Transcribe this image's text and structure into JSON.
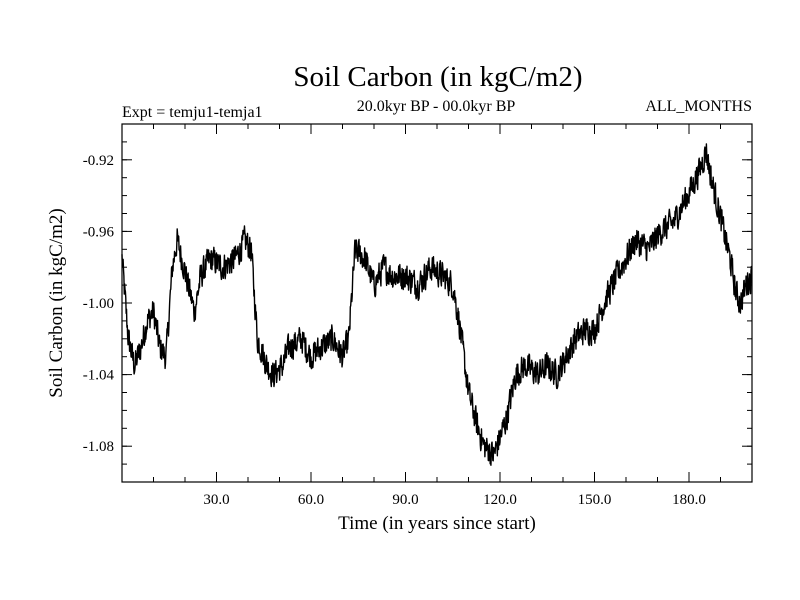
{
  "chart_data": {
    "type": "line",
    "title": "Soil Carbon (in kgC/m2)",
    "left_subtitle": "Expt = temju1-temja1",
    "center_subtitle": "20.0kyr BP - 00.0kyr BP",
    "right_subtitle": "ALL_MONTHS",
    "xlabel": "Time (in years since start)",
    "ylabel": "Soil Carbon (in kgC/m2)",
    "xlim": [
      0,
      200
    ],
    "ylim": [
      -1.1,
      -0.9
    ],
    "x_ticks": [
      30,
      60,
      90,
      120,
      150,
      180
    ],
    "x_tick_labels": [
      "30.0",
      "60.0",
      "90.0",
      "120.0",
      "150.0",
      "180.0"
    ],
    "y_ticks": [
      -0.92,
      -0.96,
      -1.0,
      -1.04,
      -1.08
    ],
    "y_tick_labels": [
      "-0.92",
      "-0.96",
      "-1.00",
      "-1.04",
      "-1.08"
    ],
    "noise_amplitude": 0.008,
    "series": [
      {
        "name": "Soil Carbon",
        "color": "#000000",
        "keypoints": [
          [
            0.0,
            -0.975
          ],
          [
            2.0,
            -1.02
          ],
          [
            4.0,
            -1.035
          ],
          [
            6.0,
            -1.025
          ],
          [
            8.0,
            -1.01
          ],
          [
            10.0,
            -1.005
          ],
          [
            12.0,
            -1.025
          ],
          [
            14.0,
            -1.03
          ],
          [
            16.0,
            -0.98
          ],
          [
            17.5,
            -0.965
          ],
          [
            19.0,
            -0.975
          ],
          [
            21.0,
            -0.99
          ],
          [
            23.0,
            -1.005
          ],
          [
            25.0,
            -0.985
          ],
          [
            28.0,
            -0.975
          ],
          [
            32.0,
            -0.98
          ],
          [
            36.0,
            -0.975
          ],
          [
            39.0,
            -0.965
          ],
          [
            41.0,
            -0.97
          ],
          [
            43.0,
            -1.02
          ],
          [
            46.0,
            -1.035
          ],
          [
            48.0,
            -1.04
          ],
          [
            51.0,
            -1.035
          ],
          [
            53.0,
            -1.025
          ],
          [
            57.0,
            -1.02
          ],
          [
            60.0,
            -1.03
          ],
          [
            63.0,
            -1.025
          ],
          [
            67.0,
            -1.02
          ],
          [
            70.0,
            -1.03
          ],
          [
            72.0,
            -1.02
          ],
          [
            74.0,
            -0.97
          ],
          [
            77.0,
            -0.975
          ],
          [
            80.0,
            -0.99
          ],
          [
            83.0,
            -0.98
          ],
          [
            86.0,
            -0.985
          ],
          [
            90.0,
            -0.985
          ],
          [
            94.0,
            -0.99
          ],
          [
            98.0,
            -0.98
          ],
          [
            102.0,
            -0.985
          ],
          [
            105.0,
            -0.99
          ],
          [
            107.0,
            -1.01
          ],
          [
            110.0,
            -1.05
          ],
          [
            113.0,
            -1.07
          ],
          [
            115.0,
            -1.08
          ],
          [
            118.0,
            -1.085
          ],
          [
            120.0,
            -1.075
          ],
          [
            122.0,
            -1.065
          ],
          [
            125.0,
            -1.04
          ],
          [
            128.0,
            -1.035
          ],
          [
            132.0,
            -1.04
          ],
          [
            135.0,
            -1.035
          ],
          [
            138.0,
            -1.04
          ],
          [
            141.0,
            -1.03
          ],
          [
            144.0,
            -1.02
          ],
          [
            147.0,
            -1.015
          ],
          [
            150.0,
            -1.015
          ],
          [
            153.0,
            -1.0
          ],
          [
            157.0,
            -0.985
          ],
          [
            160.0,
            -0.975
          ],
          [
            163.0,
            -0.965
          ],
          [
            167.0,
            -0.97
          ],
          [
            171.0,
            -0.96
          ],
          [
            175.0,
            -0.955
          ],
          [
            178.0,
            -0.945
          ],
          [
            181.0,
            -0.935
          ],
          [
            183.5,
            -0.925
          ],
          [
            185.5,
            -0.915
          ],
          [
            187.0,
            -0.93
          ],
          [
            189.0,
            -0.945
          ],
          [
            191.0,
            -0.96
          ],
          [
            193.0,
            -0.975
          ],
          [
            195.0,
            -0.995
          ],
          [
            196.5,
            -1.0
          ],
          [
            198.0,
            -0.99
          ],
          [
            200.0,
            -0.985
          ]
        ]
      }
    ]
  }
}
